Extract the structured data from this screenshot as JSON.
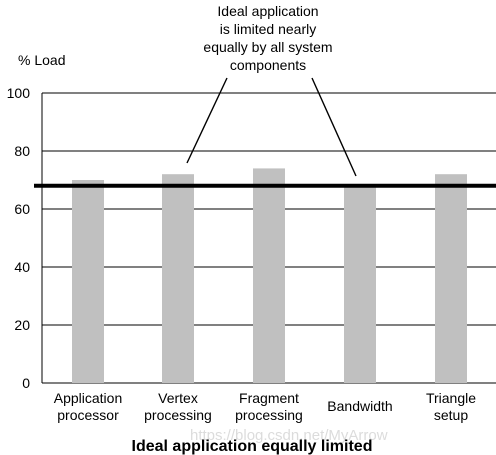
{
  "chart_data": {
    "type": "bar",
    "title": "Ideal application equally limited",
    "ylabel": "% Load",
    "xlabel": "",
    "ylim": [
      0,
      100
    ],
    "yticks": [
      0,
      20,
      40,
      60,
      80,
      100
    ],
    "grid": true,
    "categories": [
      [
        "Application",
        "processor"
      ],
      [
        "Vertex",
        "processing"
      ],
      [
        "Fragment",
        "processing"
      ],
      [
        "Bandwidth"
      ],
      [
        "Triangle",
        "setup"
      ]
    ],
    "values": [
      70,
      72,
      74,
      68,
      72
    ],
    "reference_line": 68,
    "annotation": {
      "lines": [
        "Ideal application",
        "is limited nearly",
        "equally by all system",
        "components"
      ],
      "arrow_targets": [
        1,
        3
      ]
    },
    "watermark": "https://blog.csdn.net/MyArrow",
    "colors": {
      "bar": "#c0c0c0",
      "reference_line": "#000000",
      "grid": "#000000"
    }
  }
}
